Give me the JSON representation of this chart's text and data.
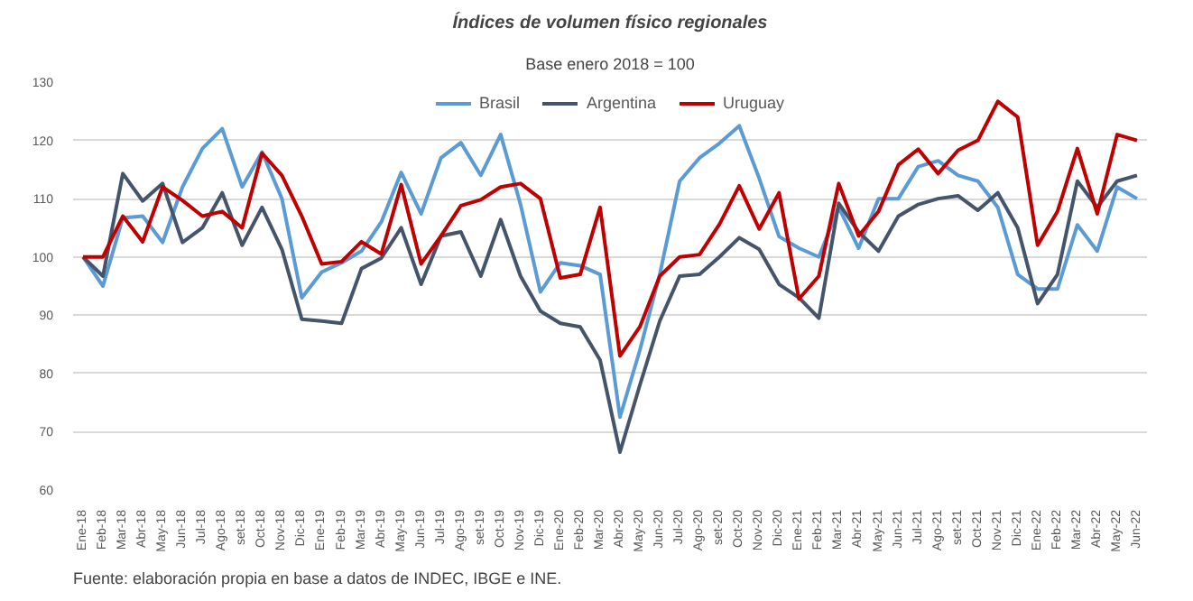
{
  "chart_data": {
    "type": "line",
    "title": "Índices de volumen físico regionales",
    "subtitle": "Base enero 2018 = 100",
    "categories": [
      "Ene-18",
      "Feb-18",
      "Mar-18",
      "Abr-18",
      "May-18",
      "Jun-18",
      "Jul-18",
      "Ago-18",
      "set-18",
      "Oct-18",
      "Nov-18",
      "Dic-18",
      "Ene-19",
      "Feb-19",
      "Mar-19",
      "Abr-19",
      "May-19",
      "Jun-19",
      "Jul-19",
      "Ago-19",
      "set-19",
      "Oct-19",
      "Nov-19",
      "Dic-19",
      "Ene-20",
      "Feb-20",
      "Mar-20",
      "Abr-20",
      "May-20",
      "Jun-20",
      "Jul-20",
      "Ago-20",
      "set-20",
      "Oct-20",
      "Nov-20",
      "Dic-20",
      "Ene-21",
      "Feb-21",
      "Mar-21",
      "Abr-21",
      "May-21",
      "Jun-21",
      "Jul-21",
      "Ago-21",
      "set-21",
      "Oct-21",
      "Nov-21",
      "Dic-21",
      "Ene-22",
      "Feb-22",
      "Mar-22",
      "Abr-22",
      "May-22",
      "Jun-22"
    ],
    "series": [
      {
        "name": "Brasil",
        "color": "#5b9bd5",
        "values": [
          100,
          95,
          106.7,
          107,
          102.5,
          112,
          118.6,
          122,
          112,
          118,
          110,
          93,
          97.4,
          99,
          101,
          106,
          114.5,
          107.4,
          117,
          119.6,
          114,
          121,
          109,
          94,
          99,
          98.5,
          97,
          72.5,
          84,
          97,
          113,
          117,
          119.5,
          122.5,
          113.5,
          103.5,
          101.5,
          100,
          108.5,
          101.5,
          110,
          110,
          115.5,
          116.5,
          114,
          113,
          108.5,
          97,
          94.5,
          94.5,
          105.5,
          101,
          112,
          110
        ]
      },
      {
        "name": "Argentina",
        "color": "#44546a",
        "values": [
          100,
          96.7,
          114.3,
          109.6,
          112.6,
          102.5,
          105,
          111,
          102,
          108.5,
          101.3,
          89.3,
          89,
          88.6,
          98,
          99.8,
          105,
          95.3,
          103.6,
          104.3,
          96.7,
          106.4,
          96.7,
          90.7,
          88.6,
          88,
          82.3,
          66.5,
          78,
          89,
          96.7,
          97,
          100,
          103.3,
          101.3,
          95.3,
          93,
          89.5,
          109.2,
          104.3,
          101,
          107,
          109,
          110,
          110.5,
          108,
          111,
          105,
          92,
          97,
          113,
          108.5,
          113,
          114
        ]
      },
      {
        "name": "Uruguay",
        "color": "#c00000",
        "values": [
          100,
          100,
          107,
          102.6,
          112,
          109.7,
          107,
          107.8,
          105,
          117.8,
          114,
          107,
          98.8,
          99.2,
          102.6,
          100.5,
          112.4,
          98.8,
          103.6,
          108.8,
          109.8,
          112,
          112.6,
          110,
          96.4,
          97,
          108.5,
          83,
          88,
          96.7,
          100,
          100.4,
          105.6,
          112.2,
          104.8,
          111,
          92.8,
          96.7,
          112.6,
          103.6,
          107.8,
          115.8,
          118.5,
          114.3,
          118.3,
          120,
          126.7,
          124,
          102,
          107.8,
          118.6,
          107.4,
          121,
          120
        ]
      }
    ],
    "ylim": [
      60,
      130
    ],
    "yticks": [
      60,
      70,
      80,
      90,
      100,
      110,
      120,
      130
    ],
    "grid": "y",
    "legend": "top",
    "marker": "none",
    "line_style": "solid",
    "annotations": [
      "Fuente: elaboración propia en base a datos de INDEC, IBGE e INE."
    ]
  }
}
